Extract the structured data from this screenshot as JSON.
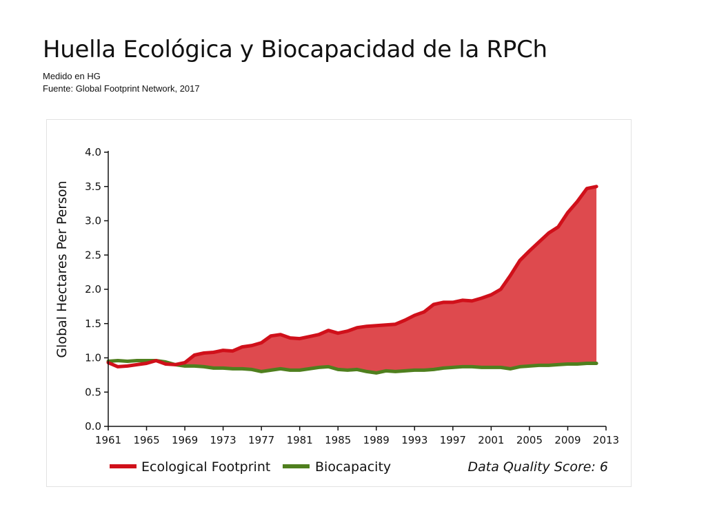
{
  "header": {
    "title": "Huella Ecológica y Biocapacidad de la RPCh",
    "subtitle": "Medido en HG",
    "source": "Fuente: Global Footprint Network, 2017"
  },
  "colors": {
    "footprint_line": "#d0101a",
    "footprint_fill": "#de4a4e",
    "biocapacity_line": "#4f7f1e",
    "axis": "#111111"
  },
  "chart_data": {
    "type": "area",
    "ylabel": "Global Hectares Per Person",
    "xlabel": "",
    "xlim": [
      1961,
      2013
    ],
    "ylim": [
      0,
      4
    ],
    "x_ticks": [
      "1961",
      "1965",
      "1969",
      "1973",
      "1977",
      "1981",
      "1985",
      "1989",
      "1993",
      "1997",
      "2001",
      "2005",
      "2009",
      "2013"
    ],
    "y_ticks": [
      "0.0",
      "0.5",
      "1.0",
      "1.5",
      "2.0",
      "2.5",
      "3.0",
      "3.5",
      "4.0"
    ],
    "x": [
      1961,
      1962,
      1963,
      1964,
      1965,
      1966,
      1967,
      1968,
      1969,
      1970,
      1971,
      1972,
      1973,
      1974,
      1975,
      1976,
      1977,
      1978,
      1979,
      1980,
      1981,
      1982,
      1983,
      1984,
      1985,
      1986,
      1987,
      1988,
      1989,
      1990,
      1991,
      1992,
      1993,
      1994,
      1995,
      1996,
      1997,
      1998,
      1999,
      2000,
      2001,
      2002,
      2003,
      2004,
      2005,
      2006,
      2007,
      2008,
      2009,
      2010,
      2011,
      2012
    ],
    "series": [
      {
        "name": "Ecological Footprint",
        "values": [
          0.93,
          0.87,
          0.88,
          0.9,
          0.92,
          0.96,
          0.91,
          0.9,
          0.93,
          1.04,
          1.07,
          1.08,
          1.11,
          1.1,
          1.16,
          1.18,
          1.22,
          1.32,
          1.34,
          1.29,
          1.28,
          1.31,
          1.34,
          1.4,
          1.36,
          1.39,
          1.44,
          1.46,
          1.47,
          1.48,
          1.49,
          1.55,
          1.62,
          1.67,
          1.78,
          1.81,
          1.81,
          1.84,
          1.83,
          1.87,
          1.92,
          2.0,
          2.2,
          2.42,
          2.56,
          2.69,
          2.82,
          2.91,
          3.12,
          3.28,
          3.47,
          3.5
        ]
      },
      {
        "name": "Biocapacity",
        "values": [
          0.95,
          0.96,
          0.95,
          0.96,
          0.96,
          0.96,
          0.94,
          0.9,
          0.88,
          0.88,
          0.87,
          0.85,
          0.85,
          0.84,
          0.84,
          0.83,
          0.8,
          0.82,
          0.84,
          0.82,
          0.82,
          0.84,
          0.86,
          0.87,
          0.83,
          0.82,
          0.83,
          0.8,
          0.78,
          0.81,
          0.8,
          0.81,
          0.82,
          0.82,
          0.83,
          0.85,
          0.86,
          0.87,
          0.87,
          0.86,
          0.86,
          0.86,
          0.84,
          0.87,
          0.88,
          0.89,
          0.89,
          0.9,
          0.91,
          0.91,
          0.92,
          0.92
        ]
      }
    ],
    "legend": {
      "position": "bottom",
      "items": [
        "Ecological Footprint",
        "Biocapacity"
      ]
    },
    "annotation": "Data Quality Score: 6",
    "grid": false
  }
}
